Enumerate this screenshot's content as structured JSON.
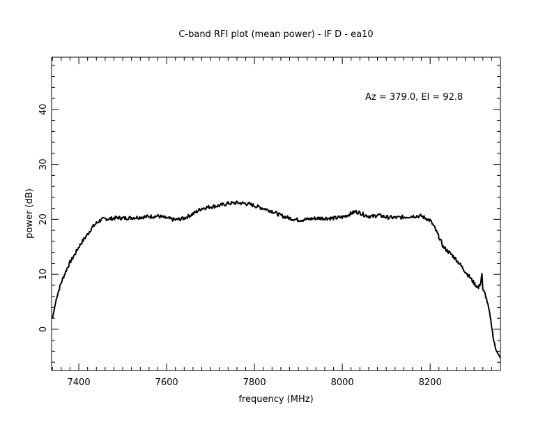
{
  "chart_data": {
    "type": "line",
    "title": "C-band RFI plot (mean power) - IF D - ea10",
    "xlabel": "frequency (MHz)",
    "ylabel": "power (dB)",
    "annotation": "Az = 379.0, El = 92.8",
    "xlim": [
      7338,
      8360
    ],
    "ylim": [
      -7.5,
      49.5
    ],
    "x_ticks": [
      7400,
      7600,
      7800,
      8000,
      8200
    ],
    "x_tick_labels": [
      "7400",
      "7600",
      "7800",
      "8000",
      "8200"
    ],
    "y_ticks": [
      0,
      10,
      20,
      30,
      40
    ],
    "y_tick_labels": [
      "0",
      "10",
      "20",
      "30",
      "40"
    ],
    "grid": false,
    "legend": "none",
    "color": "#000000",
    "series": [
      {
        "x": [
          7340,
          7345,
          7350,
          7360,
          7370,
          7380,
          7390,
          7400,
          7410,
          7420,
          7430,
          7440,
          7450,
          7460,
          7470,
          7480,
          7490,
          7500,
          7520,
          7540,
          7560,
          7580,
          7600,
          7620,
          7640,
          7660,
          7680,
          7700,
          7720,
          7740,
          7760,
          7780,
          7800,
          7820,
          7840,
          7860,
          7880,
          7900,
          7920,
          7940,
          7960,
          7980,
          8000,
          8010,
          8020,
          8030,
          8040,
          8050,
          8060,
          8070,
          8080,
          8090,
          8100,
          8120,
          8140,
          8160,
          8180,
          8200,
          8210,
          8220,
          8230,
          8240,
          8250,
          8260,
          8270,
          8280,
          8290,
          8300,
          8310,
          8315,
          8318,
          8320,
          8325,
          8330,
          8335,
          8340,
          8345,
          8350,
          8355,
          8360
        ],
        "y": [
          2.0,
          4.0,
          6.0,
          8.5,
          10.5,
          12.2,
          13.5,
          15.0,
          16.2,
          17.3,
          18.5,
          19.3,
          19.9,
          20.1,
          20.1,
          20.2,
          20.3,
          20.2,
          20.3,
          20.4,
          20.5,
          20.6,
          20.2,
          19.9,
          20.2,
          21.0,
          22.0,
          22.3,
          22.5,
          22.9,
          23.0,
          22.9,
          22.5,
          22.0,
          21.5,
          20.7,
          20.2,
          19.9,
          20.0,
          20.2,
          20.2,
          20.2,
          20.4,
          20.7,
          21.1,
          21.4,
          21.2,
          20.8,
          20.6,
          20.5,
          20.8,
          20.6,
          20.4,
          20.3,
          20.4,
          20.6,
          20.6,
          19.8,
          18.5,
          16.8,
          15.0,
          14.2,
          13.5,
          12.6,
          11.6,
          10.5,
          9.5,
          8.4,
          7.5,
          8.5,
          10.2,
          7.0,
          6.5,
          5.0,
          3.0,
          0.5,
          -2.0,
          -3.8,
          -4.5,
          -5.2
        ]
      }
    ]
  }
}
